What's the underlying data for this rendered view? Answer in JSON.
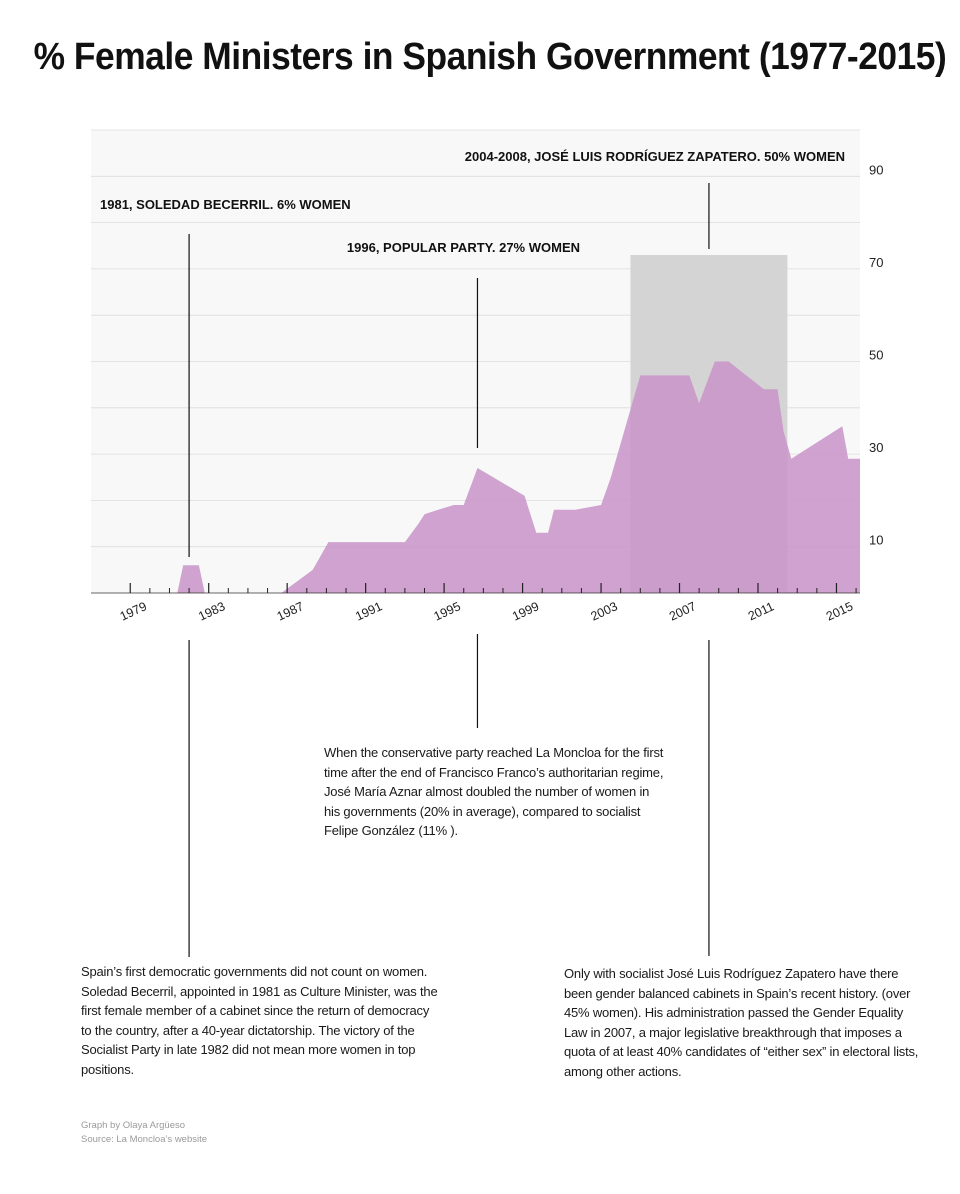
{
  "chart_data": {
    "type": "area",
    "title": "% Female Ministers in Spanish Government (1977-2015)",
    "xlabel": "",
    "ylabel": "",
    "xlim": [
      1976.5,
      2015.7
    ],
    "ylim": [
      0,
      100
    ],
    "y_ticks": [
      10,
      30,
      50,
      70,
      90
    ],
    "x_ticks": [
      1979,
      1983,
      1987,
      1991,
      1995,
      1999,
      2003,
      2007,
      2011,
      2015
    ],
    "grid": true,
    "legend": "none",
    "fill_color": "#c893c8",
    "highlight_color": "#d4d4d4",
    "highlight": {
      "x_start": 2004.0,
      "x_end": 2012.0
    },
    "series": [
      {
        "x": [
          1976.8,
          1980.9,
          1981.2,
          1982.0,
          1982.3,
          1985.5,
          1986.2,
          1987.8,
          1988.6,
          1992.5,
          1993.2,
          1993.5,
          1994.2,
          1995.0,
          1995.5,
          1996.2,
          1998.6,
          1999.2,
          1999.8,
          2000.1,
          2001.2,
          2002.5,
          2003.0,
          2004.5,
          2007.0,
          2007.5,
          2008.3,
          2009.0,
          2010.8,
          2011.5,
          2011.8,
          2012.2,
          2014.8,
          2015.1,
          2015.7
        ],
        "y": [
          0,
          0,
          6,
          6,
          0,
          0,
          0,
          5,
          11,
          11,
          15,
          17,
          18,
          19,
          19,
          27,
          21,
          13,
          13,
          18,
          18,
          19,
          25,
          47,
          47,
          41,
          50,
          50,
          44,
          44,
          35,
          29,
          36,
          29,
          29
        ]
      }
    ],
    "annotations": [
      {
        "x": 1981.5,
        "label": "1981, SOLEDAD BECERRIL. 6% WOMEN"
      },
      {
        "x": 1996.2,
        "label": "1996, POPULAR PARTY. 27% WOMEN"
      },
      {
        "x": 2008.0,
        "label": "2004-2008, JOSÉ LUIS RODRÍGUEZ ZAPATERO. 50% WOMEN"
      }
    ]
  },
  "notes": {
    "soledad": "Spain’s first democratic governments did not count on women. Soledad Becerril, appointed in 1981 as Culture Minister, was the first female member of a cabinet since the return of democracy to the country, after a 40-year dictatorship. The victory of the Socialist Party in late 1982 did not mean more women in top positions.",
    "aznar": "When the conservative party reached La Moncloa for the first time after the end of Francisco Franco’s authoritarian regime, José María Aznar almost doubled the number of women in his governments (20% in average), compared to socialist Felipe González (11% ).",
    "zapatero": "Only with socialist José Luis Rodríguez Zapatero have there been gender balanced cabinets in Spain’s recent history. (over 45% women). His administration passed the Gender Equality Law in 2007, a major legislative breakthrough that imposes a quota of at least 40% candidates of “either sex” in electoral lists, among other actions."
  },
  "credits": {
    "author": "Graph by Olaya Argüeso",
    "source": "Source: La Moncloa’s website"
  }
}
